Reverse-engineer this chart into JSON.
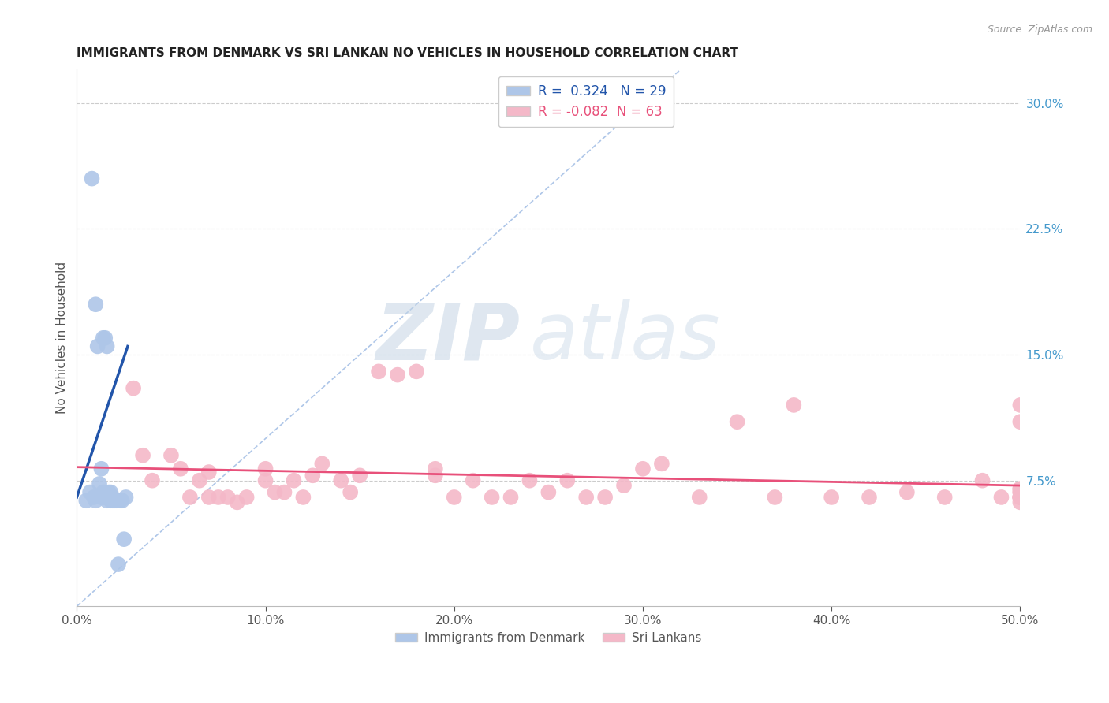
{
  "title": "IMMIGRANTS FROM DENMARK VS SRI LANKAN NO VEHICLES IN HOUSEHOLD CORRELATION CHART",
  "source_text": "Source: ZipAtlas.com",
  "ylabel": "No Vehicles in Household",
  "xlabel_ticks": [
    "0.0%",
    "10.0%",
    "20.0%",
    "30.0%",
    "40.0%",
    "50.0%"
  ],
  "xlabel_vals": [
    0.0,
    0.1,
    0.2,
    0.3,
    0.4,
    0.5
  ],
  "ylabel_ticks": [
    "7.5%",
    "15.0%",
    "22.5%",
    "30.0%"
  ],
  "ylabel_vals": [
    0.075,
    0.15,
    0.225,
    0.3
  ],
  "xlim": [
    0.0,
    0.5
  ],
  "ylim": [
    0.0,
    0.32
  ],
  "blue_r": 0.324,
  "blue_n": 29,
  "pink_r": -0.082,
  "pink_n": 63,
  "blue_color": "#aec6e8",
  "pink_color": "#f4b8c8",
  "blue_line_color": "#2255aa",
  "pink_line_color": "#e8507a",
  "dashed_line_color": "#aec6e8",
  "legend_label_blue": "Immigrants from Denmark",
  "legend_label_pink": "Sri Lankans",
  "blue_scatter_x": [
    0.005,
    0.007,
    0.008,
    0.009,
    0.01,
    0.01,
    0.011,
    0.012,
    0.013,
    0.013,
    0.014,
    0.014,
    0.015,
    0.015,
    0.016,
    0.016,
    0.017,
    0.017,
    0.018,
    0.018,
    0.019,
    0.019,
    0.02,
    0.021,
    0.022,
    0.023,
    0.024,
    0.025,
    0.026
  ],
  "blue_scatter_y": [
    0.063,
    0.068,
    0.255,
    0.065,
    0.18,
    0.063,
    0.155,
    0.073,
    0.065,
    0.082,
    0.068,
    0.16,
    0.16,
    0.065,
    0.063,
    0.155,
    0.068,
    0.065,
    0.068,
    0.063,
    0.063,
    0.065,
    0.063,
    0.063,
    0.025,
    0.063,
    0.063,
    0.04,
    0.065
  ],
  "pink_scatter_x": [
    0.03,
    0.035,
    0.04,
    0.05,
    0.055,
    0.06,
    0.065,
    0.07,
    0.07,
    0.075,
    0.08,
    0.085,
    0.09,
    0.1,
    0.1,
    0.105,
    0.11,
    0.115,
    0.12,
    0.125,
    0.13,
    0.14,
    0.145,
    0.15,
    0.16,
    0.17,
    0.18,
    0.19,
    0.19,
    0.2,
    0.21,
    0.22,
    0.23,
    0.24,
    0.25,
    0.26,
    0.27,
    0.28,
    0.29,
    0.3,
    0.31,
    0.33,
    0.35,
    0.37,
    0.38,
    0.4,
    0.42,
    0.44,
    0.46,
    0.48,
    0.49,
    0.5,
    0.5,
    0.5,
    0.5,
    0.5,
    0.5,
    0.5,
    0.5,
    0.5,
    0.5,
    0.5,
    0.5
  ],
  "pink_scatter_y": [
    0.13,
    0.09,
    0.075,
    0.09,
    0.082,
    0.065,
    0.075,
    0.065,
    0.08,
    0.065,
    0.065,
    0.062,
    0.065,
    0.082,
    0.075,
    0.068,
    0.068,
    0.075,
    0.065,
    0.078,
    0.085,
    0.075,
    0.068,
    0.078,
    0.14,
    0.138,
    0.14,
    0.078,
    0.082,
    0.065,
    0.075,
    0.065,
    0.065,
    0.075,
    0.068,
    0.075,
    0.065,
    0.065,
    0.072,
    0.082,
    0.085,
    0.065,
    0.11,
    0.065,
    0.12,
    0.065,
    0.065,
    0.068,
    0.065,
    0.075,
    0.065,
    0.065,
    0.07,
    0.065,
    0.068,
    0.065,
    0.12,
    0.11,
    0.065,
    0.07,
    0.068,
    0.062,
    0.065
  ],
  "blue_line_x": [
    0.0,
    0.027
  ],
  "blue_line_y": [
    0.065,
    0.155
  ],
  "pink_line_x": [
    0.0,
    0.5
  ],
  "pink_line_y": [
    0.083,
    0.072
  ],
  "dash_line_x": [
    0.0,
    0.32
  ],
  "dash_line_y": [
    0.0,
    0.32
  ]
}
